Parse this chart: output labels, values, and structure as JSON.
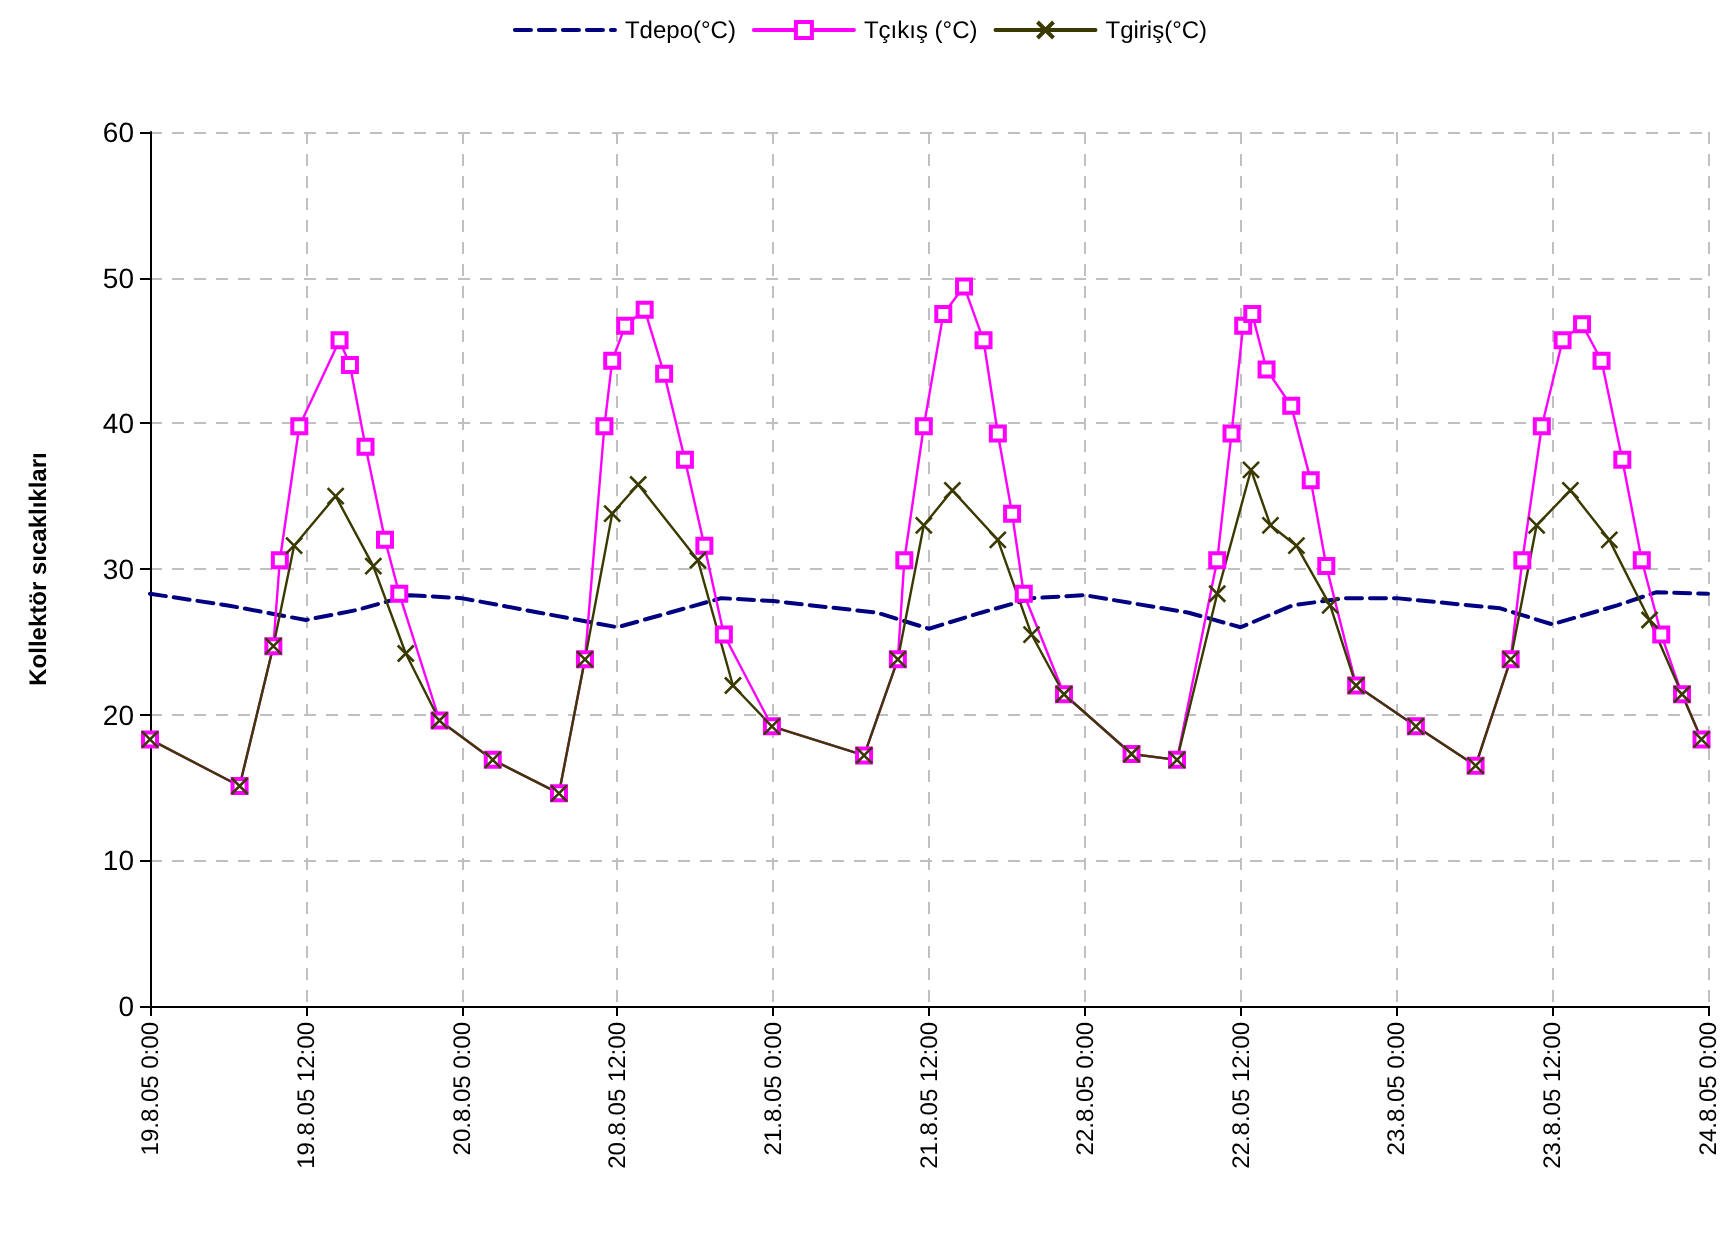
{
  "chart_data": {
    "type": "line",
    "ylabel": "Kollektör sıcaklıkları",
    "xlim": [
      "--08-19T00:00",
      "--08-24T00:00"
    ],
    "ylim": [
      0,
      60
    ],
    "xticks": [
      {
        "value": "--08-19T00:00",
        "label": "19.8.05 0:00"
      },
      {
        "value": "--08-19T12:00",
        "label": "19.8.05 12:00"
      },
      {
        "value": "--08-20T00:00",
        "label": "20.8.05 0:00"
      },
      {
        "value": "--08-20T12:00",
        "label": "20.8.05 12:00"
      },
      {
        "value": "--08-21T00:00",
        "label": "21.8.05 0:00"
      },
      {
        "value": "--08-21T12:00",
        "label": "21.8.05 12:00"
      },
      {
        "value": "--08-22T00:00",
        "label": "22.8.05 0:00"
      },
      {
        "value": "--08-22T12:00",
        "label": "22.8.05 12:00"
      },
      {
        "value": "--08-23T00:00",
        "label": "23.8.05 0:00"
      },
      {
        "value": "--08-23T12:00",
        "label": "23.8.05 12:00"
      },
      {
        "value": "--08-24T00:00",
        "label": "24.8.05 0:00"
      }
    ],
    "yticks": [
      0,
      10,
      20,
      30,
      40,
      50,
      60
    ],
    "grid": true,
    "legend": "top",
    "series": [
      {
        "name": "Tdepo(°C)",
        "color": "#000080",
        "line_style": "dashed",
        "marker": "none",
        "x": [
          "--08-19T00:00",
          "--08-19T06:00",
          "--08-19T12:00",
          "--08-19T16:00",
          "--08-19T20:00",
          "--08-20T00:00",
          "--08-20T06:00",
          "--08-20T12:00",
          "--08-20T16:00",
          "--08-20T20:00",
          "--08-21T00:00",
          "--08-21T08:00",
          "--08-21T12:00",
          "--08-21T16:00",
          "--08-21T20:00",
          "--08-22T00:00",
          "--08-22T08:00",
          "--08-22T12:00",
          "--08-22T16:00",
          "--08-22T20:00",
          "--08-23T00:00",
          "--08-23T08:00",
          "--08-23T12:00",
          "--08-23T17:00",
          "--08-23T20:00",
          "--08-24T00:00"
        ],
        "values": [
          28.3,
          27.5,
          26.5,
          27.2,
          28.2,
          28,
          27,
          26,
          27,
          28,
          27.8,
          27,
          25.9,
          27,
          28,
          28.2,
          27,
          26,
          27.5,
          28,
          28,
          27.3,
          26.2,
          27.5,
          28.4,
          28.3
        ]
      },
      {
        "name": "Tçıkış (°C)",
        "color": "#ff00ff",
        "line_style": "solid",
        "marker": "square",
        "x": [
          "--08-19T00:00",
          "--08-19T06:54",
          "--08-19T09:30",
          "--08-19T10:00",
          "--08-19T11:30",
          "--08-19T14:36",
          "--08-19T15:24",
          "--08-19T16:36",
          "--08-19T18:06",
          "--08-19T19:12",
          "--08-19T22:18",
          "--08-20T02:24",
          "--08-20T07:30",
          "--08-20T09:30",
          "--08-20T11:00",
          "--08-20T11:36",
          "--08-20T12:36",
          "--08-20T14:06",
          "--08-20T15:36",
          "--08-20T17:12",
          "--08-20T18:42",
          "--08-20T20:12",
          "--08-20T23:54",
          "--08-21T07:00",
          "--08-21T09:36",
          "--08-21T10:06",
          "--08-21T11:36",
          "--08-21T13:06",
          "--08-21T14:42",
          "--08-21T16:12",
          "--08-21T17:18",
          "--08-21T18:24",
          "--08-21T19:18",
          "--08-21T22:24",
          "--08-22T03:36",
          "--08-22T07:06",
          "--08-22T10:12",
          "--08-22T11:18",
          "--08-22T12:12",
          "--08-22T12:54",
          "--08-22T14:00",
          "--08-22T15:54",
          "--08-22T17:24",
          "--08-22T18:36",
          "--08-22T20:54",
          "--08-23T01:30",
          "--08-23T06:06",
          "--08-23T08:48",
          "--08-23T09:42",
          "--08-23T11:12",
          "--08-23T12:48",
          "--08-23T14:18",
          "--08-23T15:48",
          "--08-23T17:24",
          "--08-23T18:54",
          "--08-23T20:24",
          "--08-23T22:00",
          "--08-23T23:30"
        ],
        "values": [
          18.3,
          15.1,
          24.7,
          30.6,
          39.8,
          45.7,
          44,
          38.4,
          32,
          28.3,
          19.6,
          16.9,
          14.6,
          23.8,
          39.8,
          44.3,
          46.7,
          47.8,
          43.4,
          37.5,
          31.6,
          25.5,
          19.2,
          17.2,
          23.8,
          30.6,
          39.8,
          47.5,
          49.4,
          45.7,
          39.3,
          33.8,
          28.3,
          21.4,
          17.3,
          16.9,
          30.6,
          39.3,
          46.7,
          47.5,
          43.7,
          41.2,
          36.1,
          30.2,
          22,
          19.2,
          16.5,
          23.8,
          30.6,
          39.8,
          45.7,
          46.8,
          44.3,
          37.5,
          30.6,
          25.5,
          21.4,
          18.3
        ]
      },
      {
        "name": "Tgiriş(°C)",
        "color": "#3a3a00",
        "line_style": "solid",
        "marker": "cross",
        "x": [
          "--08-19T00:00",
          "--08-19T06:54",
          "--08-19T09:30",
          "--08-19T11:06",
          "--08-19T14:18",
          "--08-19T17:12",
          "--08-19T19:42",
          "--08-19T22:18",
          "--08-20T02:24",
          "--08-20T07:30",
          "--08-20T09:30",
          "--08-20T11:36",
          "--08-20T13:36",
          "--08-20T18:12",
          "--08-20T20:54",
          "--08-20T23:54",
          "--08-21T07:00",
          "--08-21T09:36",
          "--08-21T11:36",
          "--08-21T13:48",
          "--08-21T17:18",
          "--08-21T19:54",
          "--08-21T22:24",
          "--08-22T03:36",
          "--08-22T07:06",
          "--08-22T10:12",
          "--08-22T12:48",
          "--08-22T14:18",
          "--08-22T16:18",
          "--08-22T18:54",
          "--08-22T20:54",
          "--08-23T01:30",
          "--08-23T06:06",
          "--08-23T08:48",
          "--08-23T10:48",
          "--08-23T13:24",
          "--08-23T16:24",
          "--08-23T19:30",
          "--08-23T22:00",
          "--08-23T23:30"
        ],
        "values": [
          18.3,
          15.1,
          24.7,
          31.6,
          35,
          30.2,
          24.2,
          19.6,
          16.9,
          14.6,
          23.8,
          33.8,
          35.8,
          30.6,
          22,
          19.2,
          17.2,
          23.8,
          33,
          35.4,
          32,
          25.5,
          21.4,
          17.3,
          16.9,
          28.3,
          36.8,
          33,
          31.6,
          27.5,
          22,
          19.2,
          16.5,
          23.8,
          33,
          35.4,
          32,
          26.5,
          21.4,
          18.3
        ]
      }
    ]
  }
}
